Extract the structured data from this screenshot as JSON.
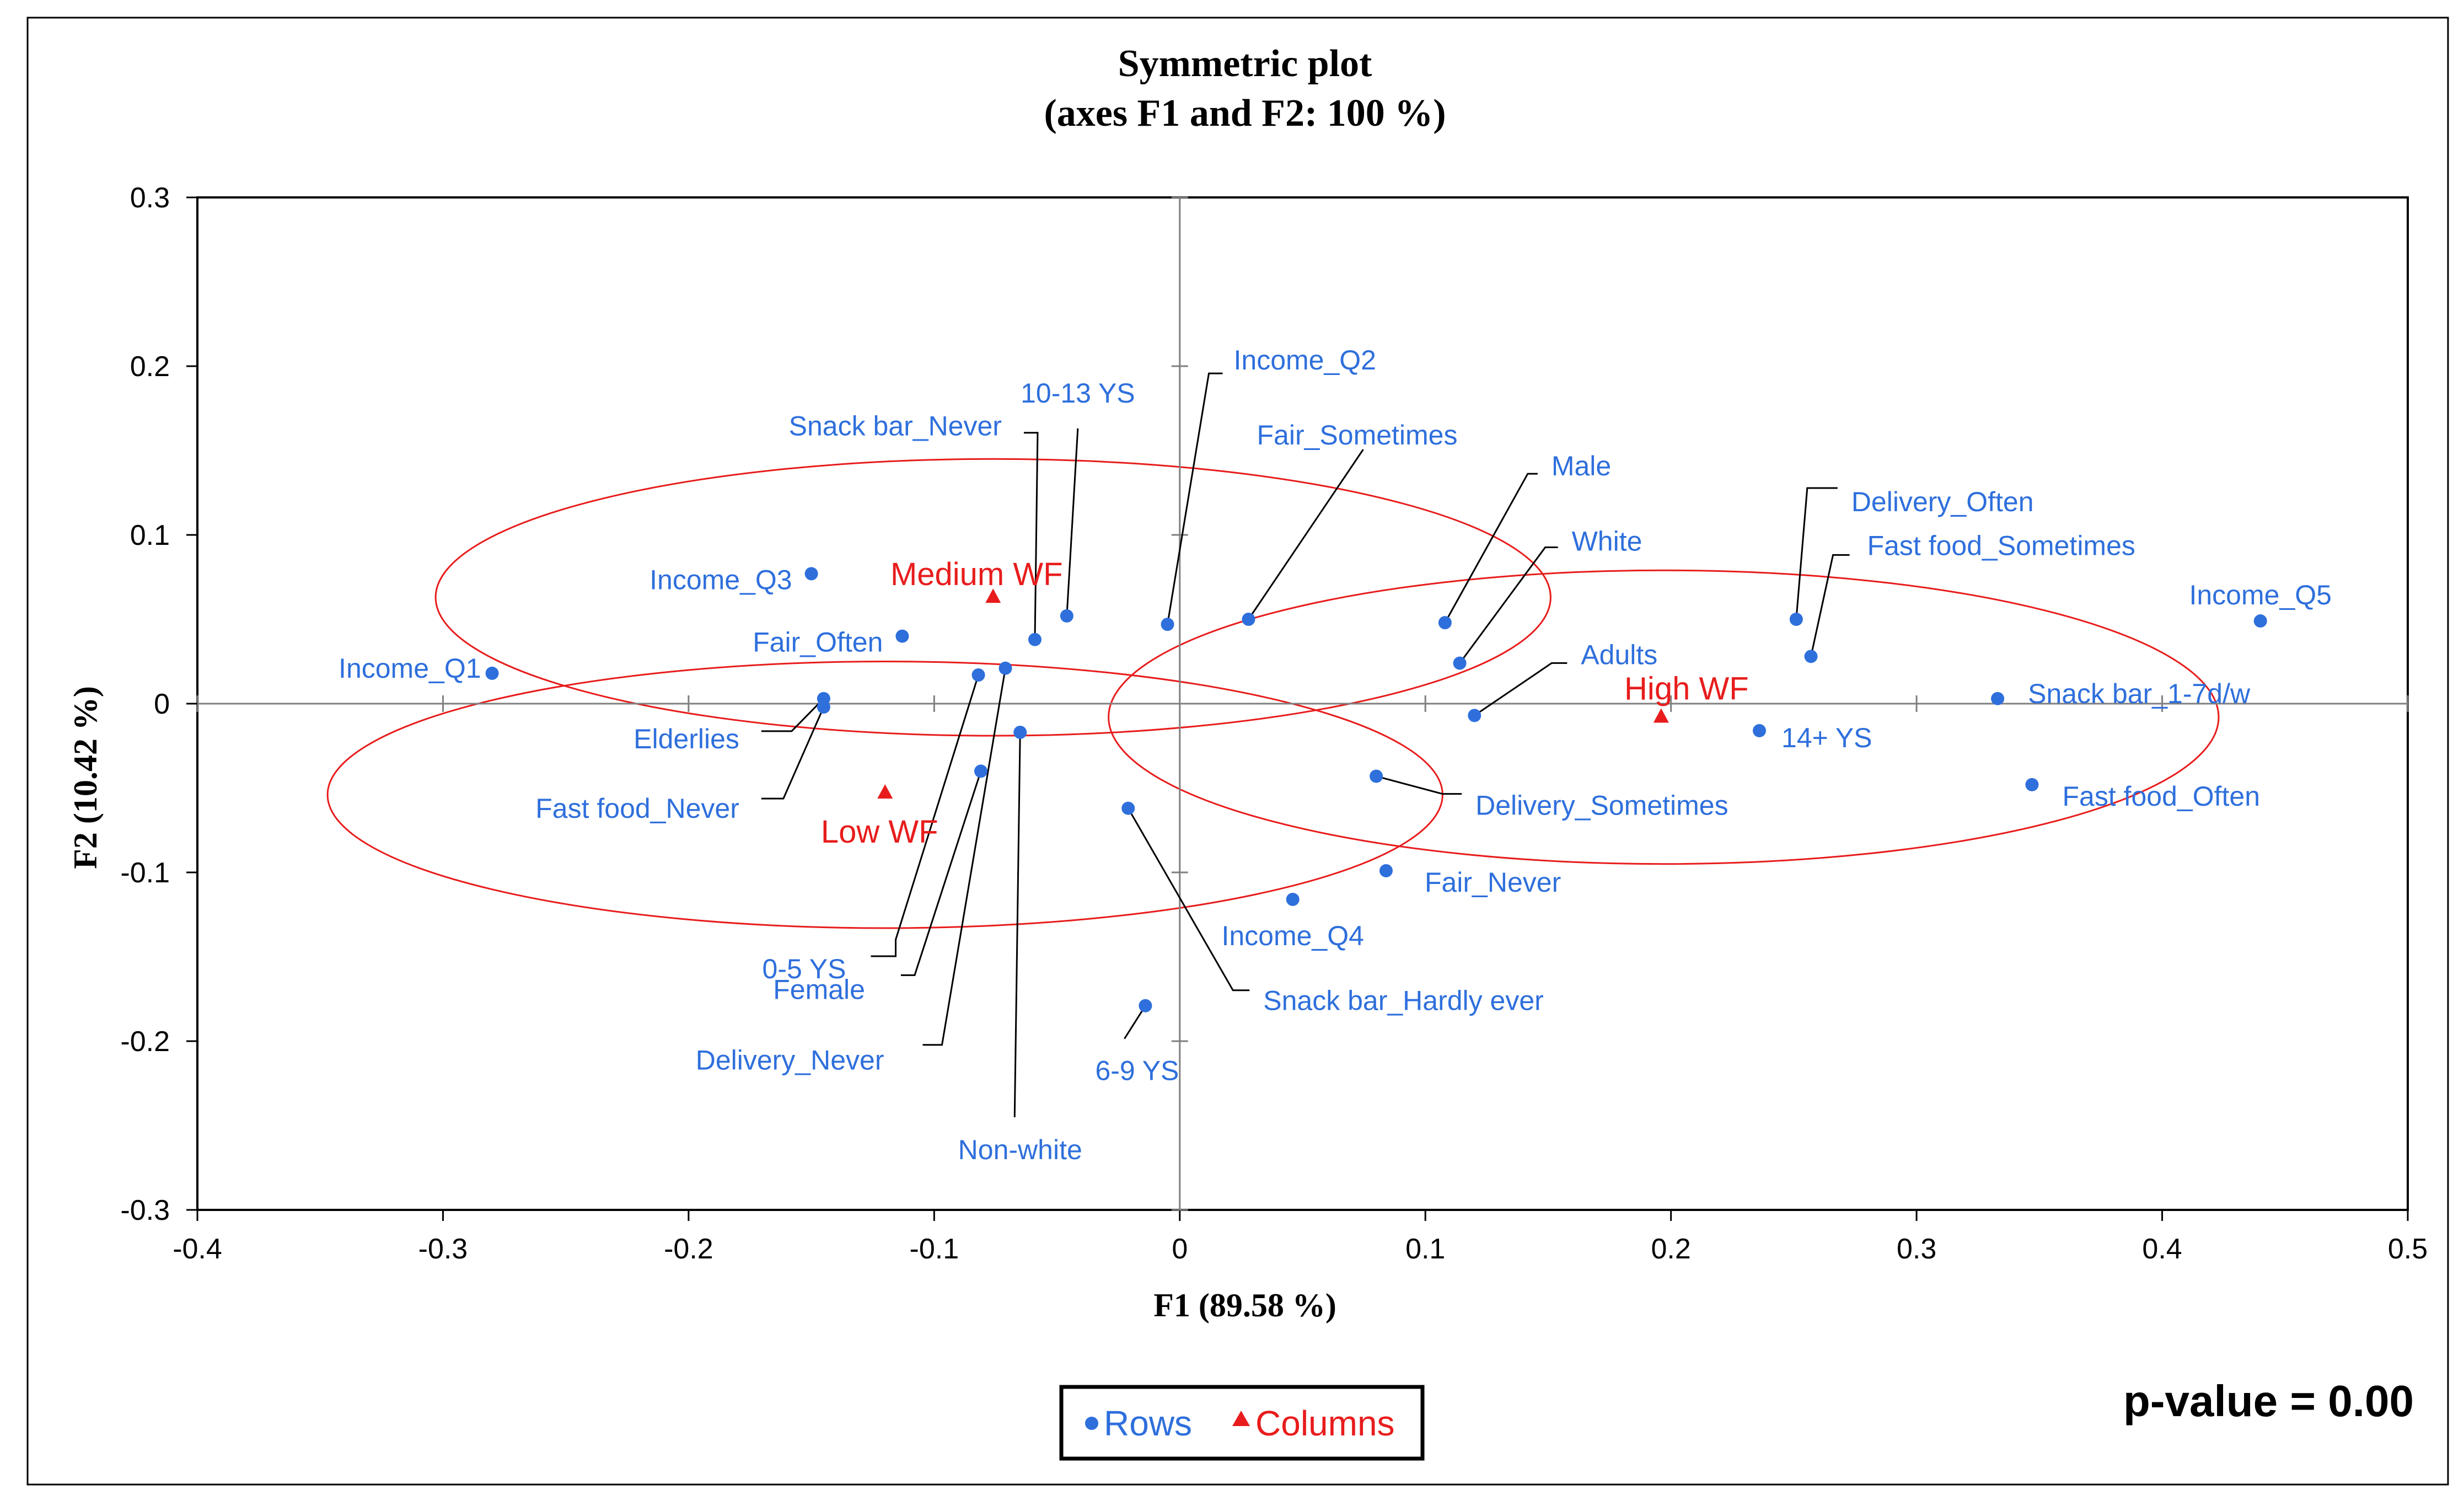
{
  "chart_data": {
    "type": "scatter",
    "title": "Symmetric plot",
    "subtitle": "(axes F1 and F2: 100 %)",
    "xlabel": "F1 (89.58 %)",
    "ylabel": "F2 (10.42 %)",
    "xlim": [
      -0.4,
      0.5
    ],
    "ylim": [
      -0.3,
      0.3
    ],
    "x_ticks": [
      -0.4,
      -0.3,
      -0.2,
      -0.1,
      0,
      0.1,
      0.2,
      0.3,
      0.4,
      0.5
    ],
    "x_tick_labels": [
      "-0.4",
      "-0.3",
      "-0.2",
      "-0.1",
      "0",
      "0.1",
      "0.2",
      "0.3",
      "0.4",
      "0.5"
    ],
    "y_ticks": [
      -0.3,
      -0.2,
      -0.1,
      0,
      0.1,
      0.2,
      0.3
    ],
    "y_tick_labels": [
      "-0.3",
      "-0.2",
      "-0.1",
      "0",
      "0.1",
      "0.2",
      "0.3"
    ],
    "grid": false,
    "legend": {
      "placement": "bottom-center",
      "entries": [
        {
          "name": "Rows",
          "marker": "circle",
          "color": "#2e6fdc"
        },
        {
          "name": "Columns",
          "marker": "triangle",
          "color": "#e81c1c"
        }
      ]
    },
    "annotation": "p-value = 0.00",
    "colors": {
      "rows": "#2e6fdc",
      "columns": "#e81c1c",
      "ellipse": "#e81c1c",
      "axis": "#000000",
      "crossline": "#7f7f7f"
    },
    "series": [
      {
        "name": "Rows",
        "marker": "circle",
        "points": [
          {
            "label": "Income_Q1",
            "x": -0.28,
            "y": 0.018
          },
          {
            "label": "Income_Q2",
            "x": -0.005,
            "y": 0.047
          },
          {
            "label": "Income_Q3",
            "x": -0.15,
            "y": 0.077
          },
          {
            "label": "Income_Q4",
            "x": 0.046,
            "y": -0.116
          },
          {
            "label": "Income_Q5",
            "x": 0.44,
            "y": 0.049
          },
          {
            "label": "10-13 YS",
            "x": -0.046,
            "y": 0.052
          },
          {
            "label": "Snack bar_Never",
            "x": -0.059,
            "y": 0.038
          },
          {
            "label": "Fair_Sometimes",
            "x": 0.028,
            "y": 0.05
          },
          {
            "label": "Fair_Often",
            "x": -0.113,
            "y": 0.04
          },
          {
            "label": "Male",
            "x": 0.108,
            "y": 0.048
          },
          {
            "label": "White",
            "x": 0.114,
            "y": 0.024
          },
          {
            "label": "Adults",
            "x": 0.12,
            "y": -0.007
          },
          {
            "label": "Delivery_Often",
            "x": 0.251,
            "y": 0.05
          },
          {
            "label": "Fast food_Sometimes",
            "x": 0.257,
            "y": 0.028
          },
          {
            "label": "Snack bar_1-7d/w",
            "x": 0.333,
            "y": 0.003
          },
          {
            "label": "14+ YS",
            "x": 0.236,
            "y": -0.016
          },
          {
            "label": "Fast food_Often",
            "x": 0.347,
            "y": -0.048
          },
          {
            "label": "Delivery_Sometimes",
            "x": 0.08,
            "y": -0.043
          },
          {
            "label": "Fair_Never",
            "x": 0.084,
            "y": -0.099
          },
          {
            "label": "Snack bar_Hardly ever",
            "x": -0.021,
            "y": -0.062
          },
          {
            "label": "6-9 YS",
            "x": -0.014,
            "y": -0.179
          },
          {
            "label": "Elderlies",
            "x": -0.145,
            "y": 0.003
          },
          {
            "label": "Fast food_Never",
            "x": -0.145,
            "y": -0.002
          },
          {
            "label": "0-5 YS",
            "x": -0.082,
            "y": 0.017
          },
          {
            "label": "Female",
            "x": -0.081,
            "y": -0.04
          },
          {
            "label": "Delivery_Never",
            "x": -0.071,
            "y": 0.021
          },
          {
            "label": "Non-white",
            "x": -0.065,
            "y": -0.017
          }
        ]
      },
      {
        "name": "Columns",
        "marker": "triangle",
        "points": [
          {
            "label": "Medium WF",
            "x": -0.076,
            "y": 0.063
          },
          {
            "label": "Low WF",
            "x": -0.12,
            "y": -0.053
          },
          {
            "label": "High WF",
            "x": 0.196,
            "y": -0.008
          }
        ]
      }
    ],
    "confidence_ellipses": [
      {
        "group": "Medium WF",
        "center": [
          -0.076,
          0.063
        ],
        "rx": 0.227,
        "ry": 0.082
      },
      {
        "group": "Low WF",
        "center": [
          -0.12,
          -0.054
        ],
        "rx": 0.227,
        "ry": 0.079
      },
      {
        "group": "High WF",
        "center": [
          0.197,
          -0.008
        ],
        "rx": 0.226,
        "ry": 0.087
      }
    ]
  }
}
